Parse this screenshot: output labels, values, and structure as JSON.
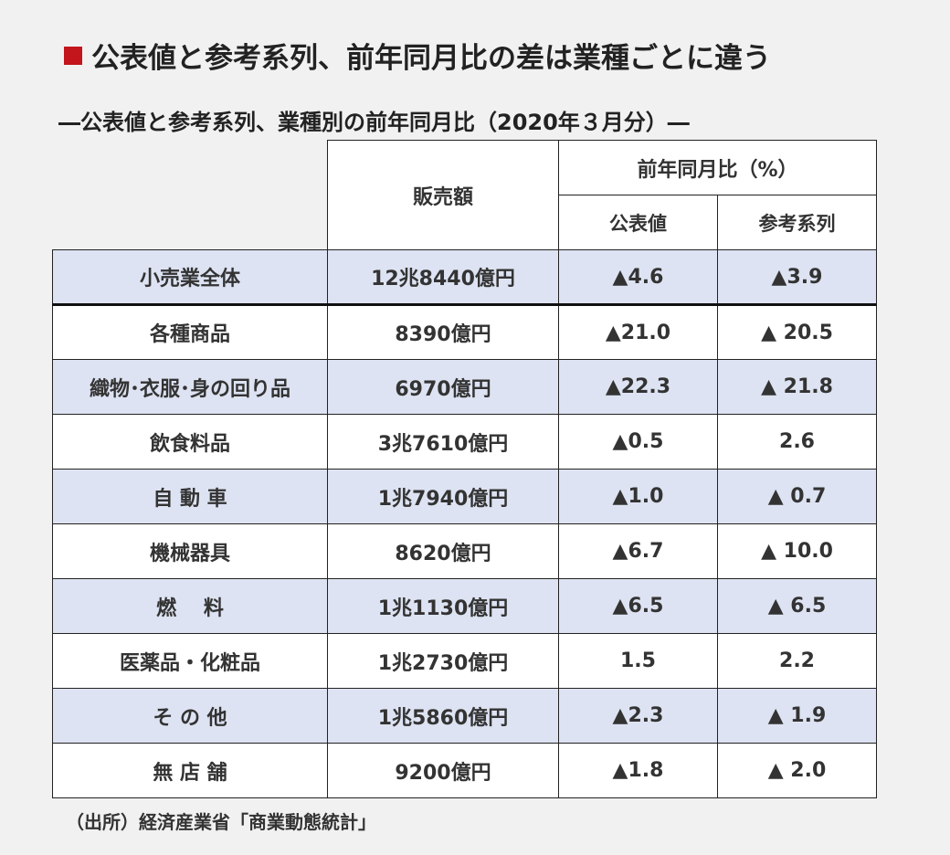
{
  "title": "公表値と参考系列、前年同月比の差は業種ごとに違う",
  "subtitle": "―公表値と参考系列、業種別の前年同月比（2020年３月分）―",
  "table": {
    "headers": {
      "sales": "販売額",
      "yoy_group": "前年同月比（%）",
      "official": "公表値",
      "reference": "参考系列"
    },
    "rows": [
      {
        "category": "小売業全体",
        "sales": "12兆8440億円",
        "official": "▲4.6",
        "reference": "▲3.9"
      },
      {
        "category": "各種商品",
        "sales": "8390億円",
        "official": "▲21.0",
        "reference": "▲ 20.5"
      },
      {
        "category": "織物･衣服･身の回り品",
        "sales": "6970億円",
        "official": "▲22.3",
        "reference": "▲ 21.8"
      },
      {
        "category": "飲食料品",
        "sales": "3兆7610億円",
        "official": "▲0.5",
        "reference": "2.6"
      },
      {
        "category": "自 動 車",
        "sales": "1兆7940億円",
        "official": "▲1.0",
        "reference": "▲ 0.7"
      },
      {
        "category": "機械器具",
        "sales": "8620億円",
        "official": "▲6.7",
        "reference": "▲ 10.0"
      },
      {
        "category": "燃　 料",
        "sales": "1兆1130億円",
        "official": "▲6.5",
        "reference": "▲ 6.5"
      },
      {
        "category": "医薬品・化粧品",
        "sales": "1兆2730億円",
        "official": "1.5",
        "reference": "2.2"
      },
      {
        "category": "そ の 他",
        "sales": "1兆5860億円",
        "official": "▲2.3",
        "reference": "▲ 1.9"
      },
      {
        "category": "無 店 舗",
        "sales": "9200億円",
        "official": "▲1.8",
        "reference": "▲ 2.0"
      }
    ]
  },
  "source": "（出所）経済産業省「商業動態統計」",
  "colors": {
    "accent_square": "#c3151c",
    "shaded_row": "#dde3f2",
    "background": "#f1f1f1"
  }
}
